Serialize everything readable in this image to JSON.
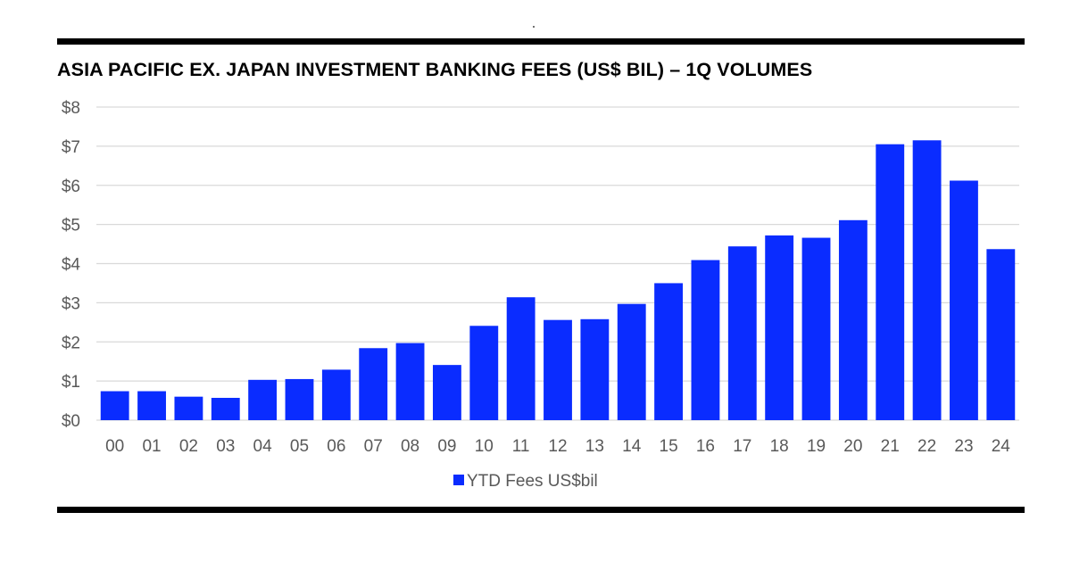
{
  "colors": {
    "bar": "#0a2cff",
    "grid": "#d9d9d9",
    "rule": "#000000",
    "text": "#595959"
  },
  "chart_data": {
    "type": "bar",
    "title": "ASIA PACIFIC EX. JAPAN INVESTMENT BANKING FEES (US$ BIL) – 1Q VOLUMES",
    "xlabel": "",
    "ylabel": "",
    "categories": [
      "00",
      "01",
      "02",
      "03",
      "04",
      "05",
      "06",
      "07",
      "08",
      "09",
      "10",
      "11",
      "12",
      "13",
      "14",
      "15",
      "16",
      "17",
      "18",
      "19",
      "20",
      "21",
      "22",
      "23",
      "24"
    ],
    "series": [
      {
        "name": "YTD Fees US$bil",
        "values": [
          0.74,
          0.74,
          0.6,
          0.57,
          1.03,
          1.05,
          1.29,
          1.84,
          1.97,
          1.41,
          2.41,
          3.14,
          2.56,
          2.58,
          2.97,
          3.5,
          4.09,
          4.44,
          4.72,
          4.66,
          5.11,
          7.05,
          7.15,
          6.12,
          4.37
        ]
      }
    ],
    "ylim": [
      0,
      8
    ],
    "yticks": [
      "$0",
      "$1",
      "$2",
      "$3",
      "$4",
      "$5",
      "$6",
      "$7",
      "$8"
    ],
    "grid": true,
    "legend_position": "bottom"
  }
}
